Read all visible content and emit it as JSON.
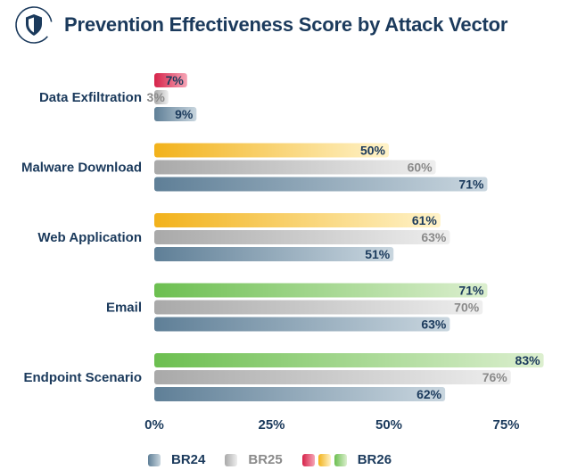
{
  "title": "Prevention Effectiveness Score by Attack Vector",
  "logo_icon": "shield-icon",
  "colors": {
    "title": "#1b3a5c",
    "br24_start": "#5f7f97",
    "br24_end": "#c9d6df",
    "br25_start": "#a9a9a9",
    "br25_end": "#eeeeee",
    "br26_red_start": "#d6234a",
    "br26_red_end": "#f6a5b6",
    "br26_yellow_start": "#f2b21b",
    "br26_yellow_end": "#fff3c9",
    "br26_green_start": "#6cbf50",
    "br26_green_end": "#dcefcf",
    "label_br24": "#1b3a5c",
    "label_br25": "#8a8a8a",
    "label_br26": "#1b3a5c"
  },
  "chart_data": {
    "type": "bar",
    "orientation": "horizontal",
    "title": "Prevention Effectiveness Score by Attack Vector",
    "categories": [
      "Data Exfiltration",
      "Malware Download",
      "Web Application",
      "Email",
      "Endpoint Scenario"
    ],
    "series": [
      {
        "name": "BR26",
        "values": [
          7,
          50,
          61,
          71,
          83
        ],
        "value_labels": [
          "7%",
          "50%",
          "61%",
          "71%",
          "83%"
        ],
        "rating_colors": [
          "red",
          "yellow",
          "yellow",
          "green",
          "green"
        ]
      },
      {
        "name": "BR25",
        "values": [
          3,
          60,
          63,
          70,
          76
        ],
        "value_labels": [
          "3%",
          "60%",
          "63%",
          "70%",
          "76%"
        ]
      },
      {
        "name": "BR24",
        "values": [
          9,
          71,
          51,
          63,
          62
        ],
        "value_labels": [
          "9%",
          "71%",
          "51%",
          "63%",
          "62%"
        ]
      }
    ],
    "x_ticks": [
      "0%",
      "25%",
      "50%",
      "75%"
    ],
    "xlim": [
      0,
      83
    ],
    "legend_position": "bottom",
    "legend": [
      {
        "label": "BR24",
        "swatches": [
          "br24"
        ]
      },
      {
        "label": "BR25",
        "swatches": [
          "br25"
        ]
      },
      {
        "label": "BR26",
        "swatches": [
          "red",
          "yellow",
          "green"
        ]
      }
    ]
  }
}
